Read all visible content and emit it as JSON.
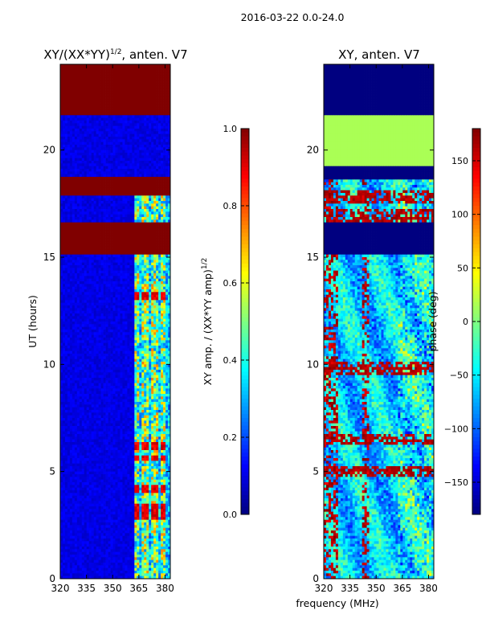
{
  "figure": {
    "suptitle": "2016-03-22 0.0-24.0",
    "shared_xlabel": "frequency (MHz)"
  },
  "chart_data": [
    {
      "type": "heatmap",
      "title": "XY/(XX*YY)$^{1/2}$, anten. V7",
      "title_main": "XY/(XX*YY)",
      "title_exp": "1/2",
      "title_suffix": ", anten. V7",
      "xlabel": "frequency (MHz)",
      "ylabel": "UT (hours)",
      "xlim": [
        320,
        383
      ],
      "ylim": [
        0,
        24
      ],
      "xticks": [
        320,
        335,
        350,
        365,
        380
      ],
      "yticks": [
        0,
        5,
        10,
        15,
        20
      ],
      "colorbar": {
        "label_main": "XY amp. / (XX*YY amp)",
        "label_exp": "1/2",
        "range": [
          0.0,
          1.0
        ],
        "ticks": [
          "0.0",
          "0.2",
          "0.4",
          "0.6",
          "0.8",
          "1.0"
        ],
        "tick_values": [
          0.0,
          0.2,
          0.4,
          0.6,
          0.8,
          1.0
        ],
        "colormap": "jet"
      },
      "bands": [
        {
          "t0": 21.6,
          "t1": 24.0,
          "value": 1.0
        },
        {
          "t0": 19.0,
          "t1": 21.6,
          "value": 0.05
        },
        {
          "t0": 17.9,
          "t1": 18.8,
          "value": 1.0
        },
        {
          "t0": 16.6,
          "t1": 17.8,
          "value": 0.12
        },
        {
          "t0": 15.1,
          "t1": 16.6,
          "value": 1.0
        },
        {
          "t0": 0.0,
          "t1": 15.1,
          "value": 0.1
        }
      ],
      "hot_columns_MHz": [
        364,
        369,
        374,
        379
      ],
      "bright_rows_UT": [
        2.9,
        3.2,
        3.4,
        4.2,
        5.6,
        6.2,
        13.2
      ]
    },
    {
      "type": "heatmap",
      "title": "XY, anten. V7",
      "xlabel": "frequency (MHz)",
      "ylabel": "",
      "xlim": [
        320,
        383
      ],
      "ylim": [
        0,
        24
      ],
      "xticks": [
        320,
        335,
        350,
        365,
        380
      ],
      "yticks": [
        0,
        5,
        10,
        15,
        20
      ],
      "colorbar": {
        "label": "phase (deg)",
        "range": [
          -180,
          180
        ],
        "ticks": [
          "150",
          "100",
          "50",
          "0",
          "−50",
          "−100",
          "−150"
        ],
        "tick_values": [
          150,
          100,
          50,
          0,
          -50,
          -100,
          -150
        ],
        "colormap": "jet"
      },
      "bands": [
        {
          "t0": 21.6,
          "t1": 24.0,
          "value": -180
        },
        {
          "t0": 19.3,
          "t1": 21.6,
          "value": 15
        },
        {
          "t0": 18.6,
          "t1": 19.3,
          "value": -180
        },
        {
          "t0": 15.1,
          "t1": 16.6,
          "value": -180
        },
        {
          "t0": 16.6,
          "t1": 18.6,
          "value": -60
        },
        {
          "t0": 0.0,
          "t1": 15.1,
          "value": -60
        }
      ],
      "red_rows_UT": [
        5.0,
        6.5,
        9.8,
        16.9,
        17.8
      ]
    }
  ]
}
